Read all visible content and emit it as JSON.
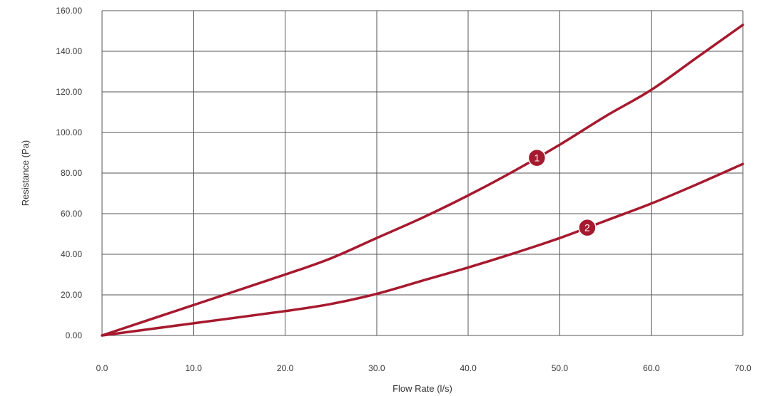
{
  "chart_data": {
    "type": "line",
    "title": "",
    "xlabel": "Flow Rate (l/s)",
    "ylabel": "Resistance (Pa)",
    "xlim": [
      0,
      70
    ],
    "ylim": [
      0,
      160
    ],
    "x_ticks": [
      "0.0",
      "10.0",
      "20.0",
      "30.0",
      "40.0",
      "50.0",
      "60.0",
      "70.0"
    ],
    "y_ticks": [
      "0.00",
      "20.00",
      "40.00",
      "60.00",
      "80.00",
      "100.00",
      "120.00",
      "140.00",
      "160.00"
    ],
    "grid": true,
    "legend": "none",
    "line_color": "#a6192e",
    "series": [
      {
        "marker_label": "1",
        "marker_x": 47.5,
        "x": [
          0,
          10,
          20,
          25,
          30,
          35,
          40,
          45,
          50,
          55,
          60,
          65,
          70
        ],
        "values": [
          0,
          15,
          30,
          38,
          48,
          58,
          69,
          81,
          94,
          108,
          121,
          137,
          153
        ]
      },
      {
        "marker_label": "2",
        "marker_x": 53,
        "x": [
          0,
          10,
          20,
          25,
          30,
          35,
          40,
          45,
          50,
          55,
          60,
          65,
          70
        ],
        "values": [
          0,
          6,
          12,
          15.5,
          20.5,
          27,
          33.5,
          40.5,
          48,
          56.5,
          65,
          74.5,
          84.5
        ]
      }
    ]
  }
}
